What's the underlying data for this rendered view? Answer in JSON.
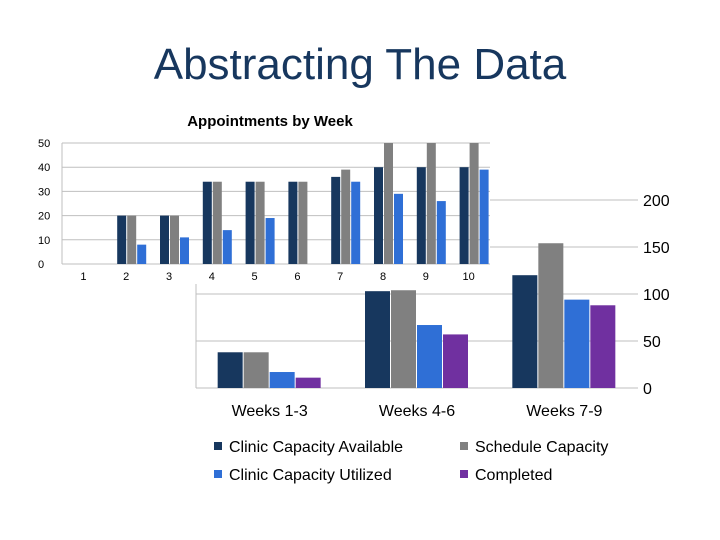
{
  "slide": {
    "title": "Abstracting The Data"
  },
  "chart_data": [
    {
      "type": "bar",
      "title": "Appointments by Week",
      "categories": [
        "1",
        "2",
        "3",
        "4",
        "5",
        "6",
        "7",
        "8",
        "9",
        "10"
      ],
      "ylim": [
        0,
        50
      ],
      "yticks": [
        "0",
        "10",
        "20",
        "30",
        "40",
        "50"
      ],
      "grid": true,
      "legend": "none",
      "series": [
        {
          "color": "#17375e",
          "values": [
            0,
            20,
            20,
            34,
            34,
            34,
            36,
            40,
            40,
            40
          ]
        },
        {
          "color": "#808080",
          "values": [
            0,
            20,
            20,
            34,
            34,
            34,
            39,
            50,
            50,
            50
          ]
        },
        {
          "color": "#2f6fd6",
          "values": [
            0,
            8,
            11,
            14,
            19,
            0,
            34,
            29,
            26,
            39
          ]
        }
      ]
    },
    {
      "type": "bar",
      "title": "",
      "categories": [
        "Weeks 1-3",
        "Weeks 4-6",
        "Weeks 7-9"
      ],
      "ylim": [
        0,
        200
      ],
      "yticks": [
        "0",
        "50",
        "100",
        "150",
        "200"
      ],
      "grid": true,
      "legend": "bottom",
      "series": [
        {
          "name": "Clinic Capacity Available",
          "color": "#17375e",
          "values": [
            38,
            103,
            120
          ]
        },
        {
          "name": "Schedule Capacity",
          "color": "#808080",
          "values": [
            38,
            104,
            154
          ]
        },
        {
          "name": "Clinic Capacity Utilized",
          "color": "#2f6fd6",
          "values": [
            17,
            67,
            94
          ]
        },
        {
          "name": "Completed",
          "color": "#7030a0",
          "values": [
            11,
            57,
            88
          ]
        }
      ]
    }
  ]
}
